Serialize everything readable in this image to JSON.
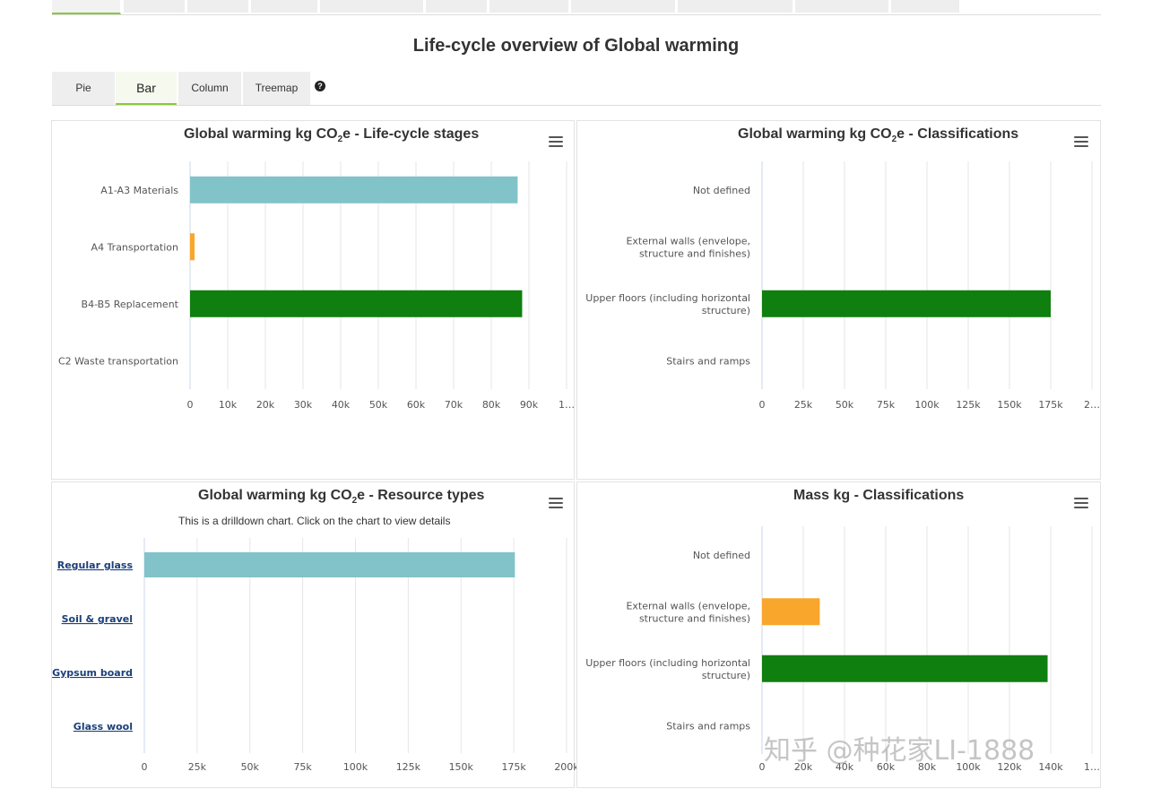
{
  "page": {
    "title": "Life-cycle overview of Global warming",
    "chart_tabs": [
      "Pie",
      "Bar",
      "Column",
      "Treemap"
    ],
    "active_tab": "Bar",
    "help_icon": "question-circle-icon",
    "watermark": "知乎 @种花家LI-1888"
  },
  "colors": {
    "teal": "#81c3c9",
    "orange": "#f9a62c",
    "green": "#0f7f0f",
    "tab_accent": "#8dc63f"
  },
  "chart_data": [
    {
      "type": "bar",
      "title_main": "Global warming kg CO",
      "title_sub": "2",
      "title_tail": "e - Life-cycle stages",
      "subtitle": "",
      "categories": [
        "A1-A3 Materials",
        "A4 Transportation",
        "B4-B5 Replacement",
        "C2 Waste transportation"
      ],
      "values": [
        87000,
        1200,
        88200,
        0
      ],
      "colors": [
        "#81c3c9",
        "#f9a62c",
        "#0f7f0f",
        "#8e8ee0"
      ],
      "xlim": [
        0,
        100000
      ],
      "ticks": [
        "0",
        "10k",
        "20k",
        "30k",
        "40k",
        "50k",
        "60k",
        "70k",
        "80k",
        "90k",
        "1…"
      ],
      "grid": true,
      "drilldown": false
    },
    {
      "type": "bar",
      "title_main": "Global warming kg CO",
      "title_sub": "2",
      "title_tail": "e - Classifications",
      "subtitle": "",
      "categories": [
        "Not defined",
        "External walls (envelope,|structure and finishes)",
        "Upper floors (including horizontal|structure)",
        "Stairs and ramps"
      ],
      "values": [
        0,
        0,
        175000,
        0
      ],
      "colors": [
        "#81c3c9",
        "#f9a62c",
        "#0f7f0f",
        "#8e8ee0"
      ],
      "xlim": [
        0,
        200000
      ],
      "ticks": [
        "0",
        "25k",
        "50k",
        "75k",
        "100k",
        "125k",
        "150k",
        "175k",
        "2…"
      ],
      "grid": true,
      "drilldown": false
    },
    {
      "type": "bar",
      "title_main": "Global warming kg CO",
      "title_sub": "2",
      "title_tail": "e - Resource types",
      "subtitle": "This is a drilldown chart. Click on the chart to view details",
      "categories": [
        "Regular glass",
        "Soil & gravel",
        "Gypsum board",
        "Glass wool"
      ],
      "values": [
        175500,
        0,
        0,
        0
      ],
      "colors": [
        "#81c3c9",
        "#81c3c9",
        "#81c3c9",
        "#81c3c9"
      ],
      "xlim": [
        0,
        200000
      ],
      "ticks": [
        "0",
        "25k",
        "50k",
        "75k",
        "100k",
        "125k",
        "150k",
        "175k",
        "200k"
      ],
      "grid": true,
      "drilldown": true
    },
    {
      "type": "bar",
      "title_main": "Mass kg - Classifications",
      "title_sub": "",
      "title_tail": "",
      "subtitle": "",
      "categories": [
        "Not defined",
        "External walls (envelope,|structure and finishes)",
        "Upper floors (including horizontal|structure)",
        "Stairs and ramps"
      ],
      "values": [
        0,
        28000,
        138500,
        0
      ],
      "colors": [
        "#81c3c9",
        "#f9a62c",
        "#0f7f0f",
        "#8e8ee0"
      ],
      "xlim": [
        0,
        160000
      ],
      "ticks": [
        "0",
        "20k",
        "40k",
        "60k",
        "80k",
        "100k",
        "120k",
        "140k",
        "1…"
      ],
      "grid": true,
      "drilldown": false
    }
  ]
}
